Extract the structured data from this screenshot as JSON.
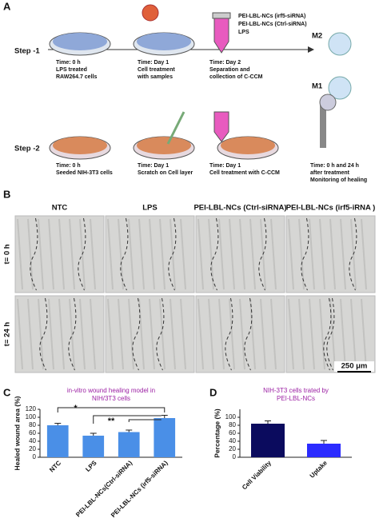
{
  "panel_a": {
    "letter": "A",
    "step1": "Step -1",
    "step2": "Step -2",
    "step1_captions": [
      [
        "Time: 0 h",
        "LPS treated",
        "RAW264.7 cells"
      ],
      [
        "Time: Day 1",
        "Cell treatment",
        "with samples"
      ],
      [
        "Time: Day 2",
        "Separation and",
        "collection of C-CCM"
      ]
    ],
    "legend": [
      "PEI-LBL-NCs (irf5-siRNA)",
      "PEI-LBL-NCs (Ctrl-siRNA)",
      "LPS"
    ],
    "m2": "M2",
    "m1": "M1",
    "step2_captions": [
      [
        "Time: 0 h",
        "Seeded NIH-3T3 cells"
      ],
      [
        "Time: Day 1",
        "Scratch on Cell layer"
      ],
      [
        "Time: Day 1",
        "Cell treatment with C-CCM"
      ],
      [
        "Time: 0 h and 24 h",
        "after treatment",
        "Monitoring of healing"
      ]
    ]
  },
  "panel_b": {
    "letter": "B",
    "columns": [
      "NTC",
      "LPS",
      "PEI-LBL-NCs (Ctrl-siRNA)",
      "PEI-LBL-NCs (irf5-iRNA )"
    ],
    "rows": [
      "t= 0 h",
      "t= 24 h"
    ],
    "scale_bar": "250 μm"
  },
  "chart_data": [
    {
      "type": "bar",
      "letter": "C",
      "title_lines": [
        "in-vitro wound healing model in",
        "NIH/3T3 cells"
      ],
      "title_color": "#9b1fa3",
      "ylabel": "Healed wound area (%)",
      "categories": [
        "NTC",
        "LPS",
        "PEI-LBL-NCs(Ctrl-siRNA)",
        "PEI-LBL-NCs (irf5-siRNA)"
      ],
      "values": [
        80,
        54,
        63,
        98
      ],
      "errors": [
        5,
        6,
        5,
        7
      ],
      "color": "#4a8fe7",
      "ylim": [
        0,
        120
      ],
      "yticks": [
        0,
        20,
        40,
        60,
        80,
        100,
        120
      ],
      "annotations": [
        "*",
        "**"
      ]
    },
    {
      "type": "bar",
      "letter": "D",
      "title_lines": [
        "NIH-3T3 cells trated by",
        "PEI-LBL-NCs"
      ],
      "title_color": "#9b1fa3",
      "ylabel": "Percentage (%)",
      "categories": [
        "Cell Viability",
        "Uptake"
      ],
      "values": [
        84,
        34
      ],
      "errors": [
        7,
        8
      ],
      "colors": [
        "#0b0b5e",
        "#2b2bff"
      ],
      "ylim": [
        0,
        120
      ],
      "yticks": [
        0,
        20,
        40,
        60,
        80,
        100
      ]
    }
  ]
}
